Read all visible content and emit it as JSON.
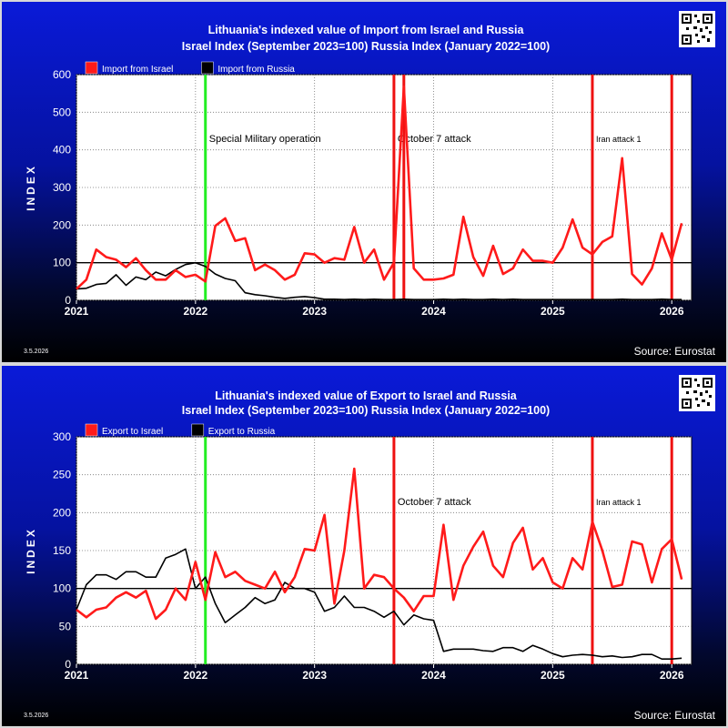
{
  "charts": [
    {
      "title_line1": "Lithuania's indexed value of Import from Israel and Russia",
      "title_line2": "Israel Index (September 2023=100) Russia Index (January 2022=100)",
      "date": "3.5.2026",
      "source": "Source: Eurostat",
      "background_gradient": [
        "#0a1ad8",
        "#000000"
      ]
    },
    {
      "title_line1": "Lithuania's indexed value of Export to Israel and Russia",
      "title_line2": "Israel Index (September 2023=100) Russia Index (January 2022=100)",
      "date": "3.5.2026",
      "source": "Source: Eurostat",
      "background_gradient": [
        "#0a1ad8",
        "#000000"
      ]
    }
  ],
  "chart_data": [
    {
      "type": "line",
      "ylabel": "INDEX",
      "xlim": [
        "2021-01",
        "2026-03"
      ],
      "ylim": [
        0,
        600
      ],
      "yticks": [
        0,
        100,
        200,
        300,
        400,
        500,
        600
      ],
      "xtick_labels": [
        "2021",
        "2022",
        "2023",
        "2024",
        "2025",
        "2026"
      ],
      "grid": true,
      "reference_line": 100,
      "legend_position": "top-left",
      "series": [
        {
          "name": "Import from Israel",
          "color": "#ff1a1a",
          "x": [
            "2021-01",
            "2021-02",
            "2021-03",
            "2021-04",
            "2021-05",
            "2021-06",
            "2021-07",
            "2021-08",
            "2021-09",
            "2021-10",
            "2021-11",
            "2021-12",
            "2022-01",
            "2022-02",
            "2022-03",
            "2022-04",
            "2022-05",
            "2022-06",
            "2022-07",
            "2022-08",
            "2022-09",
            "2022-10",
            "2022-11",
            "2022-12",
            "2023-01",
            "2023-02",
            "2023-03",
            "2023-04",
            "2023-05",
            "2023-06",
            "2023-07",
            "2023-08",
            "2023-09",
            "2023-10",
            "2023-11",
            "2023-12",
            "2024-01",
            "2024-02",
            "2024-03",
            "2024-04",
            "2024-05",
            "2024-06",
            "2024-07",
            "2024-08",
            "2024-09",
            "2024-10",
            "2024-11",
            "2024-12",
            "2025-01",
            "2025-02",
            "2025-03",
            "2025-04",
            "2025-05",
            "2025-06",
            "2025-07",
            "2025-08",
            "2025-09",
            "2025-10",
            "2025-11",
            "2025-12",
            "2026-01",
            "2026-02"
          ],
          "values": [
            30,
            55,
            135,
            115,
            108,
            88,
            112,
            80,
            55,
            55,
            80,
            62,
            68,
            50,
            198,
            218,
            158,
            165,
            80,
            95,
            80,
            55,
            68,
            125,
            122,
            100,
            112,
            108,
            195,
            100,
            135,
            55,
            100,
            568,
            85,
            55,
            55,
            58,
            68,
            222,
            115,
            65,
            145,
            70,
            85,
            135,
            105,
            105,
            100,
            140,
            215,
            140,
            122,
            155,
            170,
            378,
            70,
            42,
            85,
            178,
            108,
            205
          ]
        },
        {
          "name": "Import from Russia",
          "color": "#000000",
          "x": [
            "2021-01",
            "2021-02",
            "2021-03",
            "2021-04",
            "2021-05",
            "2021-06",
            "2021-07",
            "2021-08",
            "2021-09",
            "2021-10",
            "2021-11",
            "2021-12",
            "2022-01",
            "2022-02",
            "2022-03",
            "2022-04",
            "2022-05",
            "2022-06",
            "2022-07",
            "2022-08",
            "2022-09",
            "2022-10",
            "2022-11",
            "2022-12",
            "2023-01",
            "2023-02",
            "2023-03",
            "2023-04",
            "2023-05",
            "2023-06",
            "2023-07",
            "2023-08",
            "2023-09",
            "2023-10",
            "2023-11",
            "2023-12",
            "2024-01",
            "2024-02",
            "2024-03",
            "2024-04",
            "2024-05",
            "2024-06",
            "2024-07",
            "2024-08",
            "2024-09",
            "2024-10",
            "2024-11",
            "2024-12",
            "2025-01",
            "2025-02",
            "2025-03",
            "2025-04",
            "2025-05",
            "2025-06",
            "2025-07",
            "2025-08",
            "2025-09",
            "2025-10",
            "2025-11",
            "2025-12",
            "2026-01",
            "2026-02"
          ],
          "values": [
            30,
            32,
            42,
            45,
            68,
            40,
            62,
            55,
            75,
            65,
            82,
            95,
            100,
            90,
            70,
            58,
            52,
            20,
            15,
            12,
            8,
            5,
            8,
            10,
            7,
            3,
            3,
            2,
            3,
            2,
            3,
            2,
            2,
            3,
            2,
            2,
            2,
            3,
            2,
            3,
            2,
            2,
            3,
            2,
            3,
            2,
            2,
            2,
            2,
            2,
            2,
            2,
            2,
            2,
            2,
            3,
            2,
            2,
            2,
            3,
            2,
            2
          ]
        }
      ],
      "annotations": [
        {
          "x": "2022-02",
          "label": "Special Military operation",
          "color": "#22ee22"
        },
        {
          "x": "2023-09",
          "label": "October 7 attack",
          "color": "#ee1111"
        },
        {
          "x": "2023-10",
          "label": "",
          "color": "#ee1111"
        },
        {
          "x": "2025-05",
          "label": "Iran attack 1",
          "color": "#ee1111"
        },
        {
          "x": "2026-01",
          "label": "",
          "color": "#ee1111"
        }
      ]
    },
    {
      "type": "line",
      "ylabel": "INDEX",
      "xlim": [
        "2021-01",
        "2026-03"
      ],
      "ylim": [
        0,
        300
      ],
      "yticks": [
        0,
        50,
        100,
        150,
        200,
        250,
        300
      ],
      "xtick_labels": [
        "2021",
        "2022",
        "2023",
        "2024",
        "2025",
        "2026"
      ],
      "grid": true,
      "reference_line": 100,
      "legend_position": "top-left",
      "series": [
        {
          "name": "Export to Israel",
          "color": "#ff1a1a",
          "x": [
            "2021-01",
            "2021-02",
            "2021-03",
            "2021-04",
            "2021-05",
            "2021-06",
            "2021-07",
            "2021-08",
            "2021-09",
            "2021-10",
            "2021-11",
            "2021-12",
            "2022-01",
            "2022-02",
            "2022-03",
            "2022-04",
            "2022-05",
            "2022-06",
            "2022-07",
            "2022-08",
            "2022-09",
            "2022-10",
            "2022-11",
            "2022-12",
            "2023-01",
            "2023-02",
            "2023-03",
            "2023-04",
            "2023-05",
            "2023-06",
            "2023-07",
            "2023-08",
            "2023-09",
            "2023-10",
            "2023-11",
            "2023-12",
            "2024-01",
            "2024-02",
            "2024-03",
            "2024-04",
            "2024-05",
            "2024-06",
            "2024-07",
            "2024-08",
            "2024-09",
            "2024-10",
            "2024-11",
            "2024-12",
            "2025-01",
            "2025-02",
            "2025-03",
            "2025-04",
            "2025-05",
            "2025-06",
            "2025-07",
            "2025-08",
            "2025-09",
            "2025-10",
            "2025-11",
            "2025-12",
            "2026-01",
            "2026-02"
          ],
          "values": [
            72,
            62,
            72,
            75,
            88,
            95,
            88,
            97,
            60,
            72,
            100,
            85,
            135,
            85,
            148,
            115,
            122,
            110,
            105,
            100,
            122,
            95,
            115,
            152,
            150,
            197,
            80,
            150,
            258,
            100,
            118,
            115,
            100,
            88,
            70,
            90,
            90,
            184,
            85,
            130,
            155,
            175,
            130,
            115,
            160,
            180,
            125,
            140,
            108,
            100,
            140,
            125,
            188,
            150,
            102,
            105,
            162,
            158,
            108,
            152,
            165,
            112
          ]
        },
        {
          "name": "Export to Russia",
          "color": "#000000",
          "x": [
            "2021-01",
            "2021-02",
            "2021-03",
            "2021-04",
            "2021-05",
            "2021-06",
            "2021-07",
            "2021-08",
            "2021-09",
            "2021-10",
            "2021-11",
            "2021-12",
            "2022-01",
            "2022-02",
            "2022-03",
            "2022-04",
            "2022-05",
            "2022-06",
            "2022-07",
            "2022-08",
            "2022-09",
            "2022-10",
            "2022-11",
            "2022-12",
            "2023-01",
            "2023-02",
            "2023-03",
            "2023-04",
            "2023-05",
            "2023-06",
            "2023-07",
            "2023-08",
            "2023-09",
            "2023-10",
            "2023-11",
            "2023-12",
            "2024-01",
            "2024-02",
            "2024-03",
            "2024-04",
            "2024-05",
            "2024-06",
            "2024-07",
            "2024-08",
            "2024-09",
            "2024-10",
            "2024-11",
            "2024-12",
            "2025-01",
            "2025-02",
            "2025-03",
            "2025-04",
            "2025-05",
            "2025-06",
            "2025-07",
            "2025-08",
            "2025-09",
            "2025-10",
            "2025-11",
            "2025-12",
            "2026-01",
            "2026-02"
          ],
          "values": [
            72,
            105,
            118,
            118,
            112,
            122,
            122,
            115,
            115,
            140,
            145,
            152,
            100,
            115,
            80,
            55,
            65,
            75,
            88,
            80,
            85,
            108,
            100,
            100,
            95,
            70,
            75,
            90,
            75,
            75,
            70,
            62,
            70,
            52,
            65,
            60,
            58,
            17,
            20,
            20,
            20,
            18,
            17,
            22,
            22,
            17,
            25,
            20,
            14,
            10,
            12,
            13,
            12,
            10,
            11,
            9,
            10,
            13,
            13,
            7,
            7,
            8
          ]
        }
      ],
      "annotations": [
        {
          "x": "2022-02",
          "label": "",
          "color": "#22ee22"
        },
        {
          "x": "2023-09",
          "label": "October 7 attack",
          "color": "#ee1111"
        },
        {
          "x": "2025-05",
          "label": "Iran attack 1",
          "color": "#ee1111"
        },
        {
          "x": "2026-01",
          "label": "",
          "color": "#ee1111"
        }
      ]
    }
  ]
}
